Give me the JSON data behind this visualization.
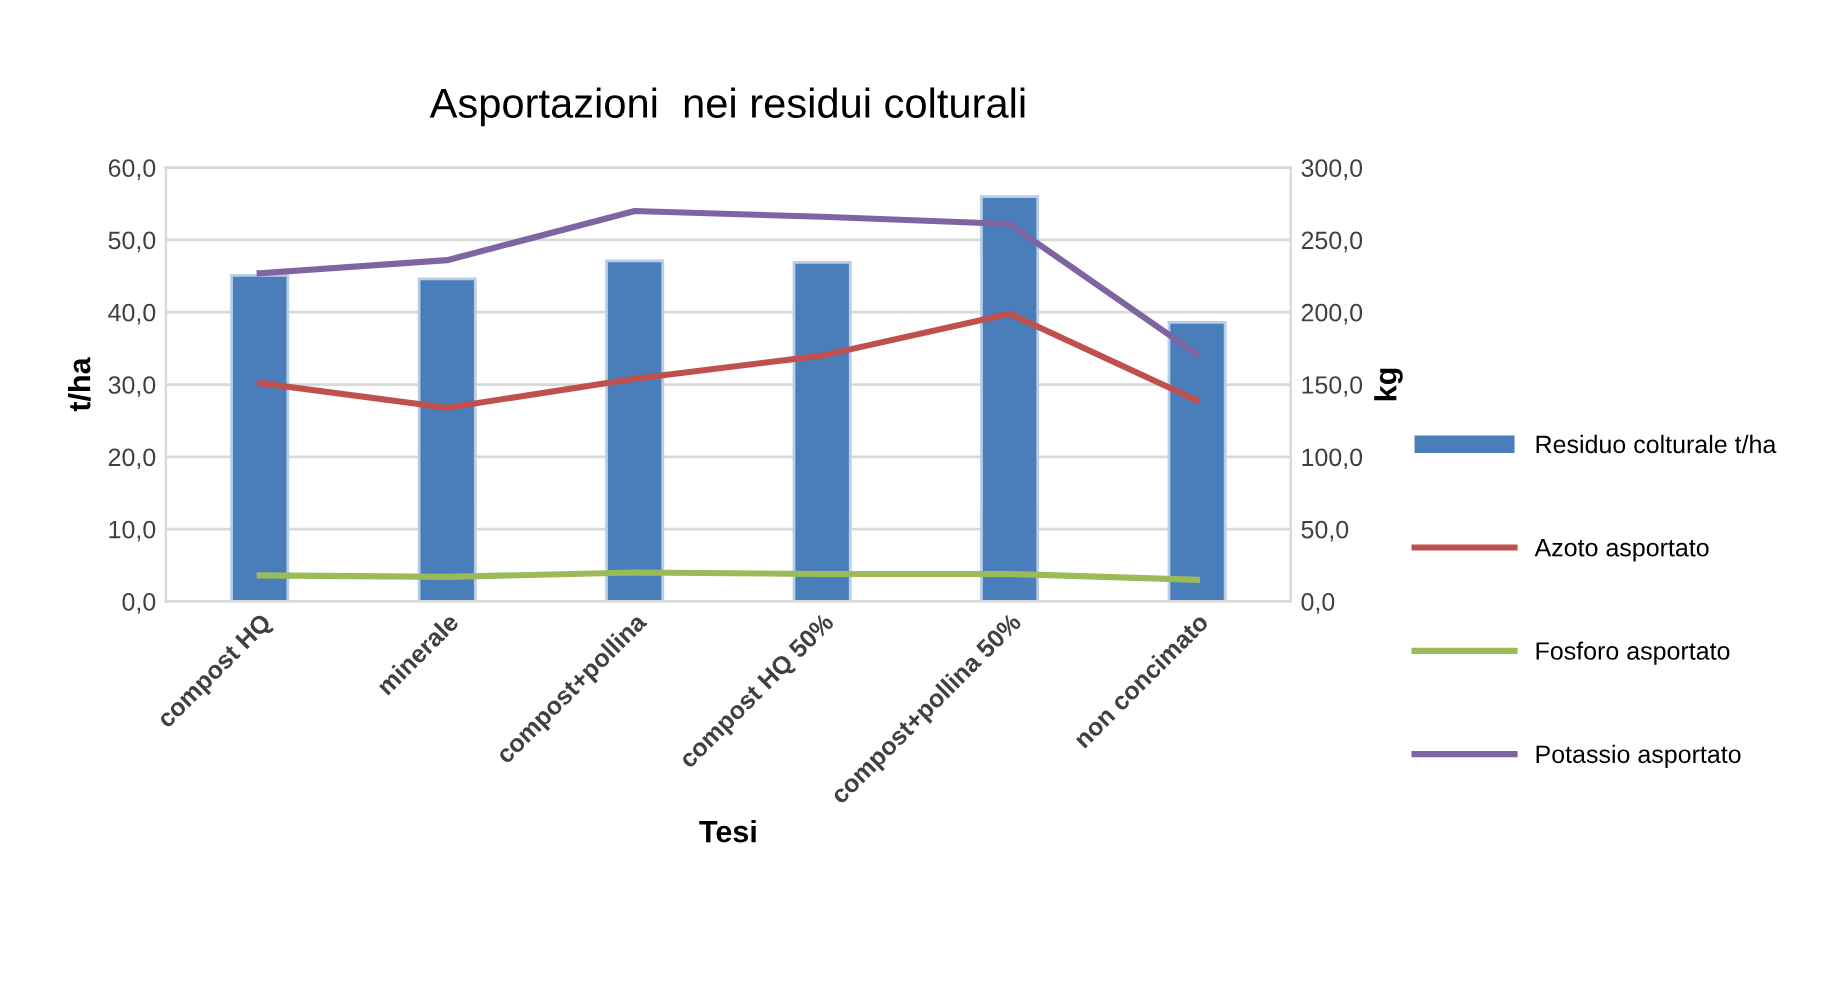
{
  "chart_data": {
    "type": "bar",
    "title": "Asportazioni  nei residui colturali",
    "xlabel": "Tesi",
    "ylabel": "t/ha",
    "y2label": "kg",
    "categories": [
      "compost HQ",
      "minerale",
      "compost+pollina",
      "compost HQ 50%",
      "compost+pollina 50%",
      "non concimato"
    ],
    "series": [
      {
        "name": "Residuo colturale t/ha",
        "color": "#4a7ebb",
        "values": [
          45.1,
          44.6,
          47.1,
          46.9,
          56.0,
          38.6
        ]
      },
      {
        "name": "Azoto asportato",
        "type": "line",
        "axis": "y2",
        "color": "#c0504d",
        "values": [
          151,
          134,
          154,
          170,
          199,
          139
        ]
      },
      {
        "name": "Fosforo asportato",
        "type": "line",
        "axis": "y2",
        "color": "#9bbb59",
        "values": [
          18,
          17,
          20,
          19,
          19,
          15
        ]
      },
      {
        "name": "Potassio asportato",
        "type": "line",
        "axis": "y2",
        "color": "#8064a2",
        "values": [
          227,
          236,
          270,
          266,
          261,
          171
        ]
      }
    ],
    "ylim": [
      0,
      60
    ],
    "yticks": [
      {
        "value": 0,
        "label": "0,0"
      },
      {
        "value": 10,
        "label": "10,0"
      },
      {
        "value": 20,
        "label": "20,0"
      },
      {
        "value": 30,
        "label": "30,0"
      },
      {
        "value": 40,
        "label": "40,0"
      },
      {
        "value": 50,
        "label": "50,0"
      },
      {
        "value": 60,
        "label": "60,0"
      }
    ],
    "y2lim": [
      0,
      300
    ],
    "y2ticks": [
      {
        "value": 0,
        "label": "0,0"
      },
      {
        "value": 50,
        "label": "50,0"
      },
      {
        "value": 100,
        "label": "100,0"
      },
      {
        "value": 150,
        "label": "150,0"
      },
      {
        "value": 200,
        "label": "200,0"
      },
      {
        "value": 250,
        "label": "250,0"
      },
      {
        "value": 300,
        "label": "300,0"
      }
    ],
    "grid": "y",
    "legend": "right",
    "marker": "none",
    "line_style": "solid"
  }
}
